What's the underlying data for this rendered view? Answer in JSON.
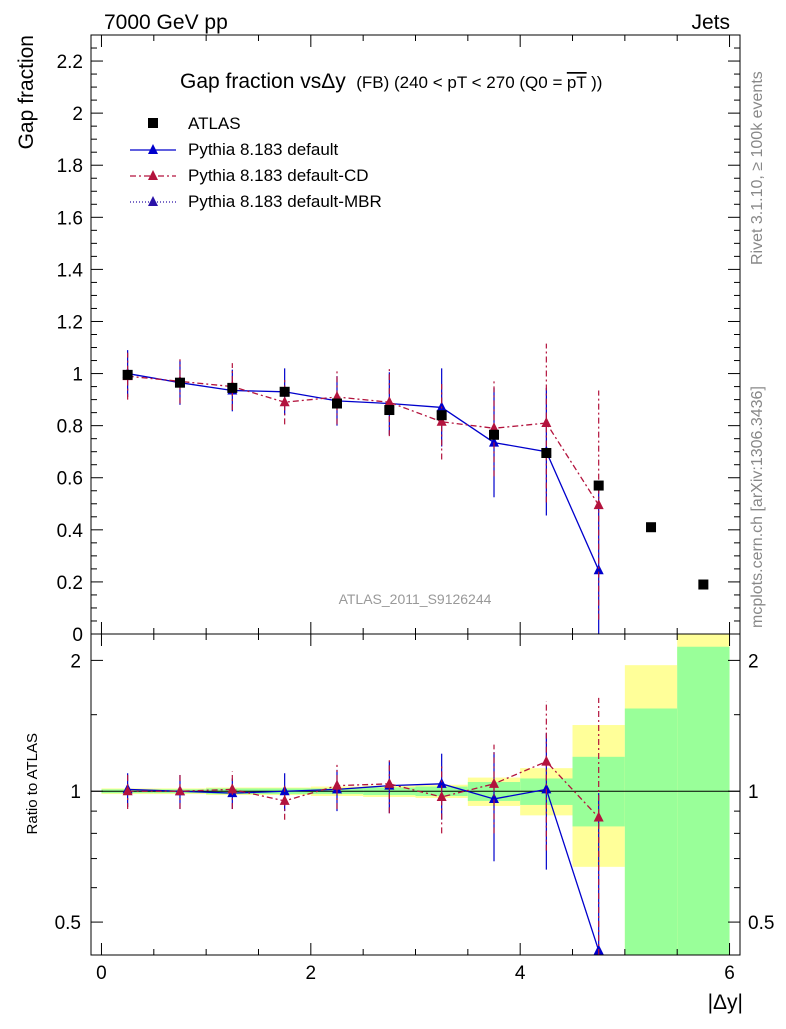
{
  "header": {
    "left": "7000 GeV pp",
    "right": "Jets"
  },
  "side": {
    "rivet": "Rivet 3.1.10, ≥ 100k events",
    "mcplots": "mcplots.cern.ch [arXiv:1306.3436]"
  },
  "chart_data": {
    "type": "scatter",
    "title_main": "Gap fraction vsΔy",
    "title_sub": "(FB) (240 < pT < 270 (Q0 =",
    "title_bar": "pT",
    "title_end": "))",
    "xlabel": "|Δy|",
    "ylabel_main": "Gap fraction",
    "ylabel_ratio": "Ratio to ATLAS",
    "watermark": "ATLAS_2011_S9126244",
    "xlim": [
      -0.1,
      6.1
    ],
    "ylim_main": [
      0,
      2.3
    ],
    "ylim_ratio": [
      0.42,
      2.3
    ],
    "x_ticks": [
      "0",
      "2",
      "4",
      "6"
    ],
    "y_ticks_main": [
      "0",
      "0.2",
      "0.4",
      "0.6",
      "0.8",
      "1",
      "1.2",
      "1.4",
      "1.6",
      "1.8",
      "2",
      "2.2"
    ],
    "y_ticks_ratio": [
      "0.5",
      "1",
      "2"
    ],
    "legend": [
      {
        "label": "ATLAS",
        "style": "square",
        "color": "#000000",
        "dash": ""
      },
      {
        "label": "Pythia 8.183 default",
        "style": "triangle",
        "color": "#0000cc",
        "dash": ""
      },
      {
        "label": "Pythia 8.183 default-CD",
        "style": "triangle",
        "color": "#b3133d",
        "dash": "6,3,2,3"
      },
      {
        "label": "Pythia 8.183 default-MBR",
        "style": "triangle",
        "color": "#2a12a8",
        "dash": "1,2"
      }
    ],
    "atlas": {
      "x": [
        0.25,
        0.75,
        1.25,
        1.75,
        2.25,
        2.75,
        3.25,
        3.75,
        4.25,
        4.75,
        5.25,
        5.75
      ],
      "y": [
        0.995,
        0.965,
        0.945,
        0.93,
        0.885,
        0.86,
        0.84,
        0.765,
        0.695,
        0.57,
        0.41,
        0.19
      ]
    },
    "series": [
      {
        "name": "Pythia 8.183 default",
        "color": "#0000cc",
        "dash": "",
        "x": [
          0.25,
          0.75,
          1.25,
          1.75,
          2.25,
          2.75,
          3.25,
          3.75,
          4.25,
          4.75
        ],
        "y": [
          1.0,
          0.965,
          0.935,
          0.93,
          0.895,
          0.885,
          0.87,
          0.735,
          0.7,
          0.245
        ],
        "err": [
          0.09,
          0.085,
          0.08,
          0.09,
          0.095,
          0.12,
          0.15,
          0.21,
          0.245,
          0.32
        ],
        "ratio": [
          1.01,
          1.0,
          0.99,
          1.0,
          1.01,
          1.03,
          1.04,
          0.96,
          1.01,
          0.43
        ],
        "ratio_err": [
          0.09,
          0.09,
          0.08,
          0.1,
          0.11,
          0.14,
          0.18,
          0.27,
          0.35,
          0.56
        ]
      },
      {
        "name": "Pythia 8.183 default-CD",
        "color": "#b3133d",
        "dash": "6,3,2,3",
        "x": [
          0.25,
          0.75,
          1.25,
          1.75,
          2.25,
          2.75,
          3.25,
          3.75,
          4.25,
          4.75
        ],
        "y": [
          0.99,
          0.97,
          0.95,
          0.89,
          0.91,
          0.89,
          0.815,
          0.79,
          0.81,
          0.495
        ],
        "err": [
          0.09,
          0.085,
          0.09,
          0.085,
          0.105,
          0.13,
          0.145,
          0.185,
          0.305,
          0.44
        ],
        "ratio": [
          1.0,
          1.0,
          1.01,
          0.95,
          1.03,
          1.04,
          0.97,
          1.04,
          1.17,
          0.87
        ],
        "ratio_err": [
          0.09,
          0.09,
          0.1,
          0.09,
          0.12,
          0.15,
          0.17,
          0.24,
          0.44,
          0.77
        ]
      }
    ],
    "bands_ratio": [
      {
        "x0": 0.0,
        "x1": 0.5,
        "g": [
          0.99,
          1.01
        ],
        "y": [
          0.985,
          1.015
        ]
      },
      {
        "x0": 0.5,
        "x1": 1.0,
        "g": [
          0.99,
          1.01
        ],
        "y": [
          0.985,
          1.015
        ]
      },
      {
        "x0": 1.0,
        "x1": 1.5,
        "g": [
          0.985,
          1.015
        ],
        "y": [
          0.98,
          1.02
        ]
      },
      {
        "x0": 1.5,
        "x1": 2.0,
        "g": [
          0.985,
          1.015
        ],
        "y": [
          0.98,
          1.02
        ]
      },
      {
        "x0": 2.0,
        "x1": 2.5,
        "g": [
          0.985,
          1.015
        ],
        "y": [
          0.975,
          1.025
        ]
      },
      {
        "x0": 2.5,
        "x1": 3.0,
        "g": [
          0.98,
          1.02
        ],
        "y": [
          0.97,
          1.03
        ]
      },
      {
        "x0": 3.0,
        "x1": 3.5,
        "g": [
          0.975,
          1.025
        ],
        "y": [
          0.965,
          1.035
        ]
      },
      {
        "x0": 3.5,
        "x1": 4.0,
        "g": [
          0.95,
          1.05
        ],
        "y": [
          0.925,
          1.075
        ]
      },
      {
        "x0": 4.0,
        "x1": 4.5,
        "g": [
          0.93,
          1.07
        ],
        "y": [
          0.88,
          1.13
        ]
      },
      {
        "x0": 4.5,
        "x1": 5.0,
        "g": [
          0.83,
          1.2
        ],
        "y": [
          0.67,
          1.42
        ]
      },
      {
        "x0": 5.0,
        "x1": 5.5,
        "g": [
          0.42,
          1.55
        ],
        "y": [
          0.42,
          1.95
        ]
      },
      {
        "x0": 5.5,
        "x1": 6.0,
        "g": [
          0.42,
          2.15
        ],
        "y": [
          0.42,
          2.3
        ]
      }
    ],
    "colors": {
      "band_green": "#99ff99",
      "band_yellow": "#ffff99",
      "ref_line": "#000000"
    }
  }
}
